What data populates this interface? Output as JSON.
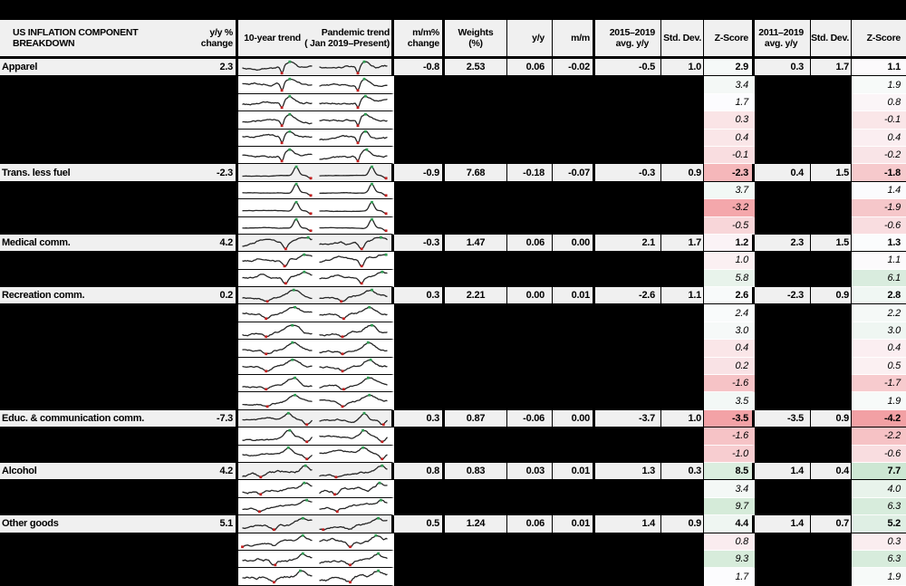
{
  "chart_data": {
    "type": "table",
    "title": "US INFLATION COMPONENT BREAKDOWN",
    "header": {
      "component": "US INFLATION COMPONENT BREAKDOWN",
      "yy_change": "y/y %\nchange",
      "trend_10yr": "10-year trend",
      "trend_pandemic": "Pandemic trend\n( Jan 2019–Present)",
      "mm_change": "m/m%\nchange",
      "weights": "Weights\n(%)",
      "yy": "y/y",
      "mm": "m/m",
      "avg_2015_2019": "2015–2019\navg. y/y",
      "std_dev_1": "Std. Dev.",
      "z_score_1": "Z-Score",
      "avg_2011_2019": "2011–2019\navg. y/y",
      "std_dev_2": "Std. Dev.",
      "z_score_2": "Z-Score"
    },
    "groups": [
      {
        "label": "Apparel",
        "trend_shape": "dip-recover",
        "yy_change": "2.3",
        "mm_change": "-0.8",
        "weights": "2.53",
        "yy": "0.06",
        "mm": "-0.02",
        "avg_2015_2019": "-0.5",
        "std_2015_2019": "1.0",
        "z_2015_2019": 2.9,
        "avg_2011_2019": "0.3",
        "std_2011_2019": "1.7",
        "z_2011_2019": 1.1,
        "sub_z_2015_2019": [
          3.4,
          1.7,
          0.3,
          0.4,
          -0.1
        ],
        "sub_z_2011_2019": [
          1.9,
          0.8,
          -0.1,
          0.4,
          -0.2
        ]
      },
      {
        "label": "Trans. less fuel",
        "trend_shape": "spike",
        "yy_change": "-2.3",
        "mm_change": "-0.9",
        "weights": "7.68",
        "yy": "-0.18",
        "mm": "-0.07",
        "avg_2015_2019": "-0.3",
        "std_2015_2019": "0.9",
        "z_2015_2019": -2.3,
        "avg_2011_2019": "0.4",
        "std_2011_2019": "1.5",
        "z_2011_2019": -1.8,
        "sub_z_2015_2019": [
          3.7,
          -3.2,
          -0.5
        ],
        "sub_z_2011_2019": [
          1.4,
          -1.9,
          -0.6
        ]
      },
      {
        "label": "Medical comm.",
        "trend_shape": "dip-mid-rise",
        "yy_change": "4.2",
        "mm_change": "-0.3",
        "weights": "1.47",
        "yy": "0.06",
        "mm": "0.00",
        "avg_2015_2019": "2.1",
        "std_2015_2019": "1.7",
        "z_2015_2019": 1.2,
        "avg_2011_2019": "2.3",
        "std_2011_2019": "1.5",
        "z_2011_2019": 1.3,
        "sub_z_2015_2019": [
          1.0,
          5.8
        ],
        "sub_z_2011_2019": [
          1.1,
          6.1
        ]
      },
      {
        "label": "Recreation comm.",
        "trend_shape": "late-rise",
        "yy_change": "0.2",
        "mm_change": "0.3",
        "weights": "2.21",
        "yy": "0.00",
        "mm": "0.01",
        "avg_2015_2019": "-2.6",
        "std_2015_2019": "1.1",
        "z_2015_2019": 2.6,
        "avg_2011_2019": "-2.3",
        "std_2011_2019": "0.9",
        "z_2011_2019": 2.8,
        "sub_z_2015_2019": [
          2.4,
          3.0,
          0.4,
          0.2,
          -1.6,
          3.5
        ],
        "sub_z_2011_2019": [
          2.2,
          3.0,
          0.4,
          0.5,
          -1.7,
          1.9
        ]
      },
      {
        "label": "Educ. & communication comm.",
        "trend_shape": "peak-drop",
        "yy_change": "-7.3",
        "mm_change": "0.3",
        "weights": "0.87",
        "yy": "-0.06",
        "mm": "0.00",
        "avg_2015_2019": "-3.7",
        "std_2015_2019": "1.0",
        "z_2015_2019": -3.5,
        "avg_2011_2019": "-3.5",
        "std_2011_2019": "0.9",
        "z_2011_2019": -4.2,
        "sub_z_2015_2019": [
          -1.6,
          -1.0
        ],
        "sub_z_2011_2019": [
          -2.2,
          -0.6
        ]
      },
      {
        "label": "Alcohol",
        "trend_shape": "slow-rise",
        "yy_change": "4.2",
        "mm_change": "0.8",
        "weights": "0.83",
        "yy": "0.03",
        "mm": "0.01",
        "avg_2015_2019": "1.3",
        "std_2015_2019": "0.3",
        "z_2015_2019": 8.5,
        "avg_2011_2019": "1.4",
        "std_2011_2019": "0.4",
        "z_2011_2019": 7.7,
        "sub_z_2015_2019": [
          3.4,
          9.7
        ],
        "sub_z_2011_2019": [
          4.0,
          6.3
        ]
      },
      {
        "label": "Other goods",
        "trend_shape": "rise",
        "yy_change": "5.1",
        "mm_change": "0.5",
        "weights": "1.24",
        "yy": "0.06",
        "mm": "0.01",
        "avg_2015_2019": "1.4",
        "std_2015_2019": "0.9",
        "z_2015_2019": 4.4,
        "avg_2011_2019": "1.4",
        "std_2011_2019": "0.7",
        "z_2011_2019": 5.2,
        "sub_z_2015_2019": [
          0.8,
          9.3,
          1.7
        ],
        "sub_z_2011_2019": [
          0.3,
          6.3,
          1.9
        ]
      }
    ],
    "z_color_scale": {
      "z_2015_2019": {
        "min": -3.5,
        "mid": 1.7,
        "max": 9.7,
        "min_color": "#f3a2a6",
        "mid_color": "#fcfcfe",
        "max_color": "#d5ebd9"
      },
      "z_2011_2019": {
        "min": -4.2,
        "mid": 1.2,
        "max": 7.7,
        "min_color": "#f2a0a4",
        "mid_color": "#fcfcfe",
        "max_color": "#cde7d3"
      }
    },
    "sparkline_colors": {
      "line": "#262626",
      "high": "#2f9e53",
      "low": "#c41f1f"
    },
    "row_band_color": "#f0f0f0",
    "background_color": "#000000"
  }
}
